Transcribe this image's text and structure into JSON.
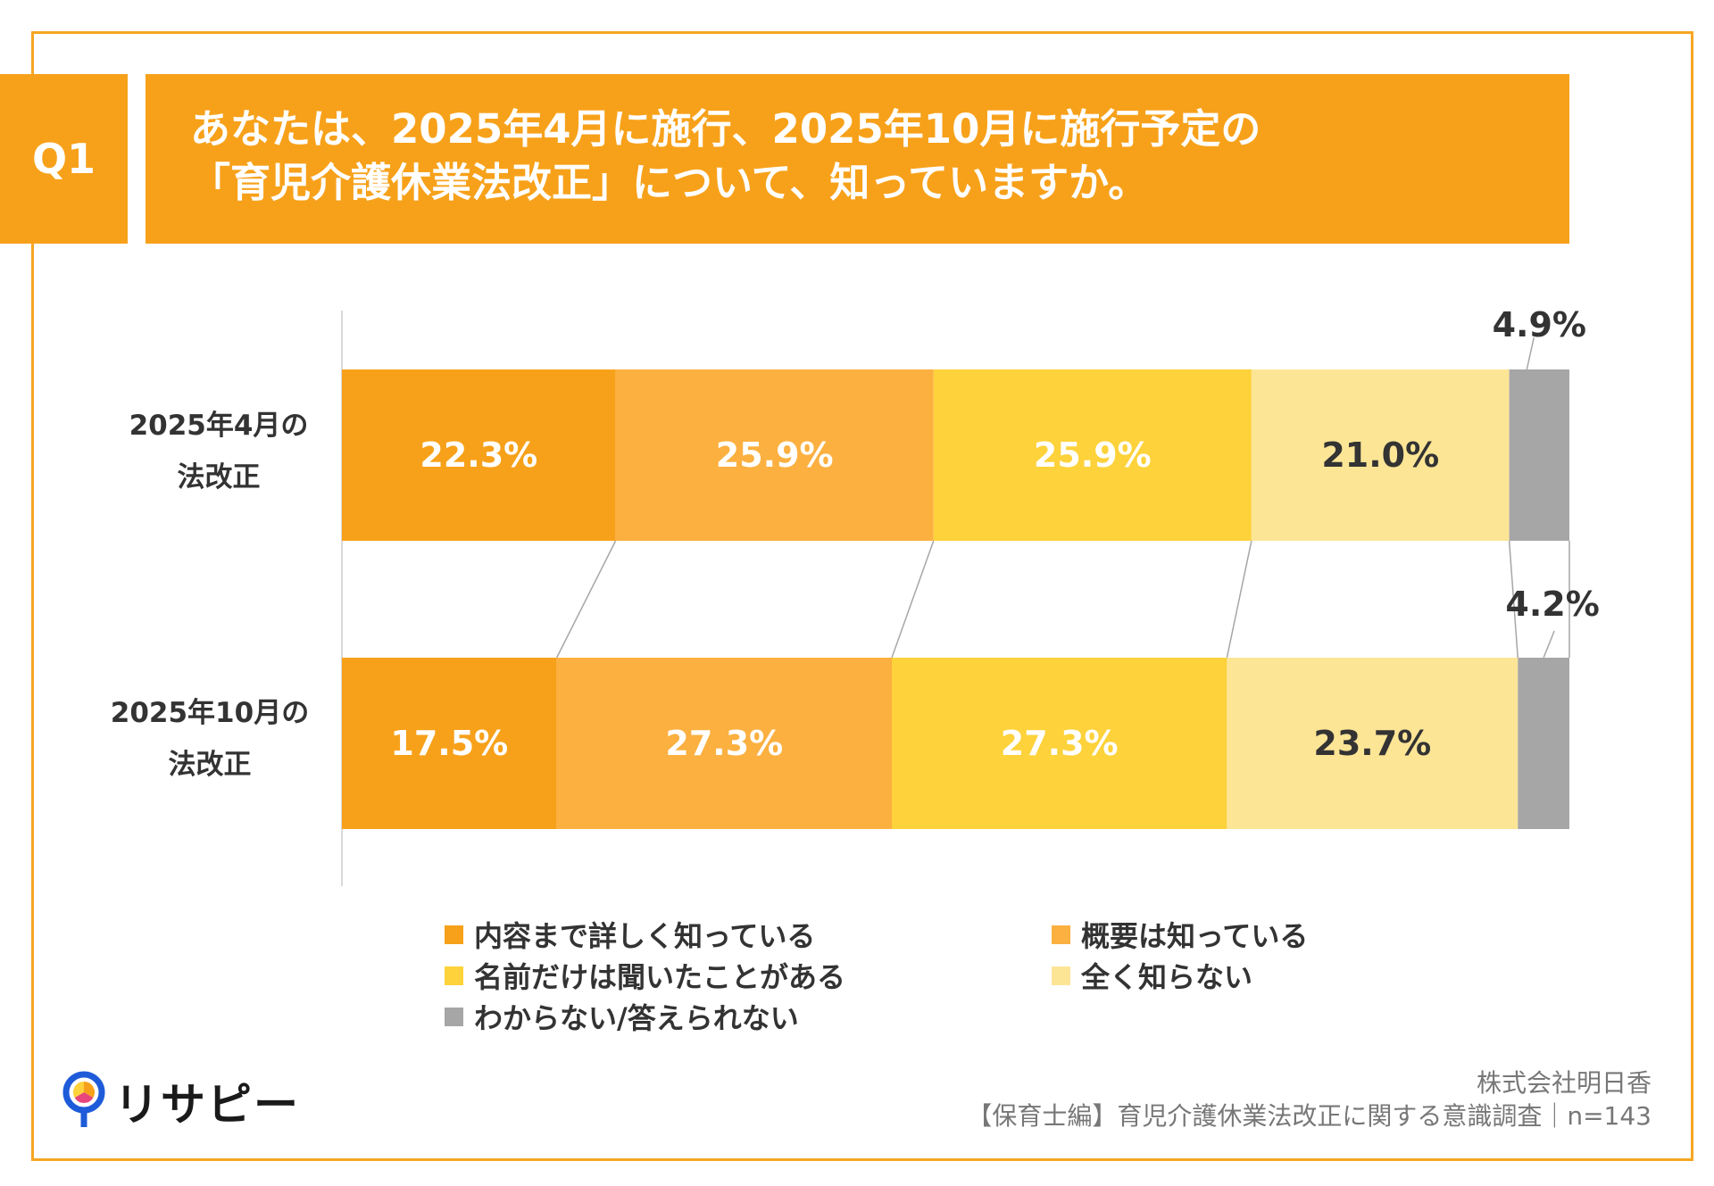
{
  "header": {
    "badge": "Q1",
    "title_line1": "あなたは、2025年4月に施行、2025年10月に施行予定の",
    "title_line2": "「育児介護休業法改正」について、知っていますか。"
  },
  "chart_data": {
    "type": "bar",
    "orientation": "horizontal",
    "stacked": true,
    "percent_stacked": true,
    "categories": [
      "2025年4月の法改正",
      "2025年10月の法改正"
    ],
    "category_label_lines": [
      [
        "2025年4月の",
        "法改正"
      ],
      [
        "2025年10月の",
        "法改正"
      ]
    ],
    "series": [
      {
        "name": "内容まで詳しく知っている",
        "values": [
          22.3,
          17.5
        ],
        "labels": [
          "22.3%",
          "17.5%"
        ],
        "color": "#F7A11A",
        "label_color": "#ffffff"
      },
      {
        "name": "概要は知っている",
        "values": [
          25.9,
          27.3
        ],
        "labels": [
          "25.9%",
          "27.3%"
        ],
        "color": "#FBB040",
        "label_color": "#ffffff"
      },
      {
        "name": "名前だけは聞いたことがある",
        "values": [
          25.9,
          27.3
        ],
        "labels": [
          "25.9%",
          "27.3%"
        ],
        "color": "#FDD23A",
        "label_color": "#ffffff"
      },
      {
        "name": "全く知らない",
        "values": [
          21.0,
          23.7
        ],
        "labels": [
          "21.0%",
          "23.7%"
        ],
        "color": "#FDE596",
        "label_color": "#333333"
      },
      {
        "name": "わからない/答えられない",
        "values": [
          4.9,
          4.2
        ],
        "labels": [
          "4.9%",
          "4.2%"
        ],
        "color": "#A6A6A6",
        "label_color": "#333333"
      }
    ],
    "xlim": [
      0,
      100
    ],
    "legend_position": "bottom",
    "grid": false
  },
  "footer": {
    "company": "株式会社明日香",
    "source": "【保育士編】育児介護休業法改正に関する意識調査｜n=143",
    "logo_text": "リサピー"
  }
}
